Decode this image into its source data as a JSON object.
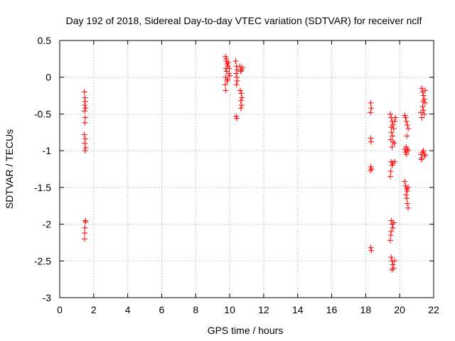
{
  "chart_data": {
    "type": "scatter",
    "title": "Day 192 of 2018, Sidereal Day-to-day VTEC variation (SDTVAR) for receiver nclf",
    "xlabel": "GPS time / hours",
    "ylabel": "SDTVAR / TECUs",
    "xlim": [
      0,
      22
    ],
    "ylim": [
      -3,
      0.5
    ],
    "x_ticks": [
      "0",
      "2",
      "4",
      "6",
      "8",
      "10",
      "12",
      "14",
      "16",
      "18",
      "20",
      "22"
    ],
    "y_ticks": [
      "0.5",
      "0",
      "-0.5",
      "-1",
      "-1.5",
      "-2",
      "-2.5",
      "-3"
    ],
    "grid": true,
    "marker": "+",
    "color": "#ff0000",
    "series": [
      {
        "name": "SDTVAR",
        "points": [
          [
            1.45,
            -0.2
          ],
          [
            1.48,
            -0.28
          ],
          [
            1.5,
            -0.33
          ],
          [
            1.47,
            -0.38
          ],
          [
            1.52,
            -0.42
          ],
          [
            1.46,
            -0.46
          ],
          [
            1.5,
            -0.55
          ],
          [
            1.48,
            -0.62
          ],
          [
            1.45,
            -0.78
          ],
          [
            1.5,
            -0.84
          ],
          [
            1.47,
            -0.9
          ],
          [
            1.52,
            -0.96
          ],
          [
            1.49,
            -1.0
          ],
          [
            1.5,
            -1.95
          ],
          [
            1.52,
            -1.97
          ],
          [
            1.48,
            -2.05
          ],
          [
            1.47,
            -2.12
          ],
          [
            1.46,
            -2.2
          ],
          [
            9.75,
            0.28
          ],
          [
            9.8,
            0.22
          ],
          [
            9.85,
            0.18
          ],
          [
            9.78,
            0.12
          ],
          [
            9.82,
            0.08
          ],
          [
            9.9,
            0.15
          ],
          [
            9.95,
            0.05
          ],
          [
            9.76,
            0.0
          ],
          [
            9.88,
            -0.03
          ],
          [
            9.8,
            0.25
          ],
          [
            9.92,
            0.2
          ],
          [
            9.74,
            -0.1
          ],
          [
            9.77,
            -0.18
          ],
          [
            9.85,
            -0.05
          ],
          [
            9.98,
            0.12
          ],
          [
            10.0,
            0.02
          ],
          [
            10.35,
            0.22
          ],
          [
            10.4,
            0.15
          ],
          [
            10.45,
            0.1
          ],
          [
            10.38,
            0.05
          ],
          [
            10.42,
            0.0
          ],
          [
            10.44,
            -0.05
          ],
          [
            10.4,
            -0.1
          ],
          [
            10.6,
            0.15
          ],
          [
            10.7,
            0.1
          ],
          [
            10.75,
            0.13
          ],
          [
            10.65,
            0.08
          ],
          [
            10.62,
            -0.18
          ],
          [
            10.68,
            -0.22
          ],
          [
            10.72,
            -0.28
          ],
          [
            10.65,
            -0.32
          ],
          [
            10.7,
            -0.38
          ],
          [
            10.66,
            -0.42
          ],
          [
            10.38,
            -0.53
          ],
          [
            10.42,
            -0.56
          ],
          [
            18.3,
            -0.35
          ],
          [
            18.33,
            -0.42
          ],
          [
            18.28,
            -0.48
          ],
          [
            18.3,
            -0.83
          ],
          [
            18.32,
            -0.88
          ],
          [
            18.3,
            -1.22
          ],
          [
            18.35,
            -1.25
          ],
          [
            18.28,
            -1.27
          ],
          [
            18.3,
            -2.32
          ],
          [
            18.33,
            -2.36
          ],
          [
            19.45,
            -0.5
          ],
          [
            19.5,
            -0.55
          ],
          [
            19.55,
            -0.6
          ],
          [
            19.6,
            -0.65
          ],
          [
            19.65,
            -0.7
          ],
          [
            19.7,
            -0.6
          ],
          [
            19.52,
            -0.75
          ],
          [
            19.58,
            -0.8
          ],
          [
            19.48,
            -0.85
          ],
          [
            19.62,
            -0.88
          ],
          [
            19.55,
            -0.95
          ],
          [
            19.68,
            -0.9
          ],
          [
            19.5,
            -0.68
          ],
          [
            19.75,
            -0.55
          ],
          [
            19.5,
            -1.15
          ],
          [
            19.55,
            -1.2
          ],
          [
            19.6,
            -1.17
          ],
          [
            19.7,
            -1.15
          ],
          [
            19.48,
            -1.28
          ],
          [
            19.45,
            -1.35
          ],
          [
            19.5,
            -1.95
          ],
          [
            19.55,
            -2.0
          ],
          [
            19.6,
            -2.05
          ],
          [
            19.65,
            -1.98
          ],
          [
            19.5,
            -2.1
          ],
          [
            19.48,
            -2.15
          ],
          [
            19.45,
            -2.22
          ],
          [
            19.5,
            -2.45
          ],
          [
            19.55,
            -2.5
          ],
          [
            19.6,
            -2.55
          ],
          [
            19.65,
            -2.6
          ],
          [
            19.7,
            -2.5
          ],
          [
            19.55,
            -2.62
          ],
          [
            20.3,
            -0.52
          ],
          [
            20.35,
            -0.55
          ],
          [
            20.4,
            -0.6
          ],
          [
            20.45,
            -0.65
          ],
          [
            20.5,
            -0.7
          ],
          [
            20.42,
            -0.8
          ],
          [
            20.3,
            -0.98
          ],
          [
            20.35,
            -1.02
          ],
          [
            20.4,
            -1.05
          ],
          [
            20.45,
            -0.98
          ],
          [
            20.5,
            -1.0
          ],
          [
            20.38,
            -0.95
          ],
          [
            20.3,
            -1.42
          ],
          [
            20.35,
            -1.48
          ],
          [
            20.4,
            -1.52
          ],
          [
            20.45,
            -1.55
          ],
          [
            20.38,
            -1.6
          ],
          [
            20.5,
            -1.5
          ],
          [
            20.42,
            -1.65
          ],
          [
            20.45,
            -1.72
          ],
          [
            20.5,
            -1.78
          ],
          [
            21.3,
            -0.15
          ],
          [
            21.35,
            -0.2
          ],
          [
            21.4,
            -0.25
          ],
          [
            21.45,
            -0.3
          ],
          [
            21.5,
            -0.35
          ],
          [
            21.35,
            -0.4
          ],
          [
            21.4,
            -0.45
          ],
          [
            21.45,
            -0.5
          ],
          [
            21.3,
            -0.55
          ],
          [
            21.5,
            -0.18
          ],
          [
            21.25,
            -0.48
          ],
          [
            21.38,
            -0.33
          ],
          [
            21.25,
            -1.05
          ],
          [
            21.3,
            -1.1
          ],
          [
            21.35,
            -1.02
          ],
          [
            21.4,
            -1.0
          ],
          [
            21.45,
            -1.05
          ],
          [
            21.5,
            -1.07
          ],
          [
            21.28,
            -1.12
          ]
        ]
      }
    ]
  }
}
